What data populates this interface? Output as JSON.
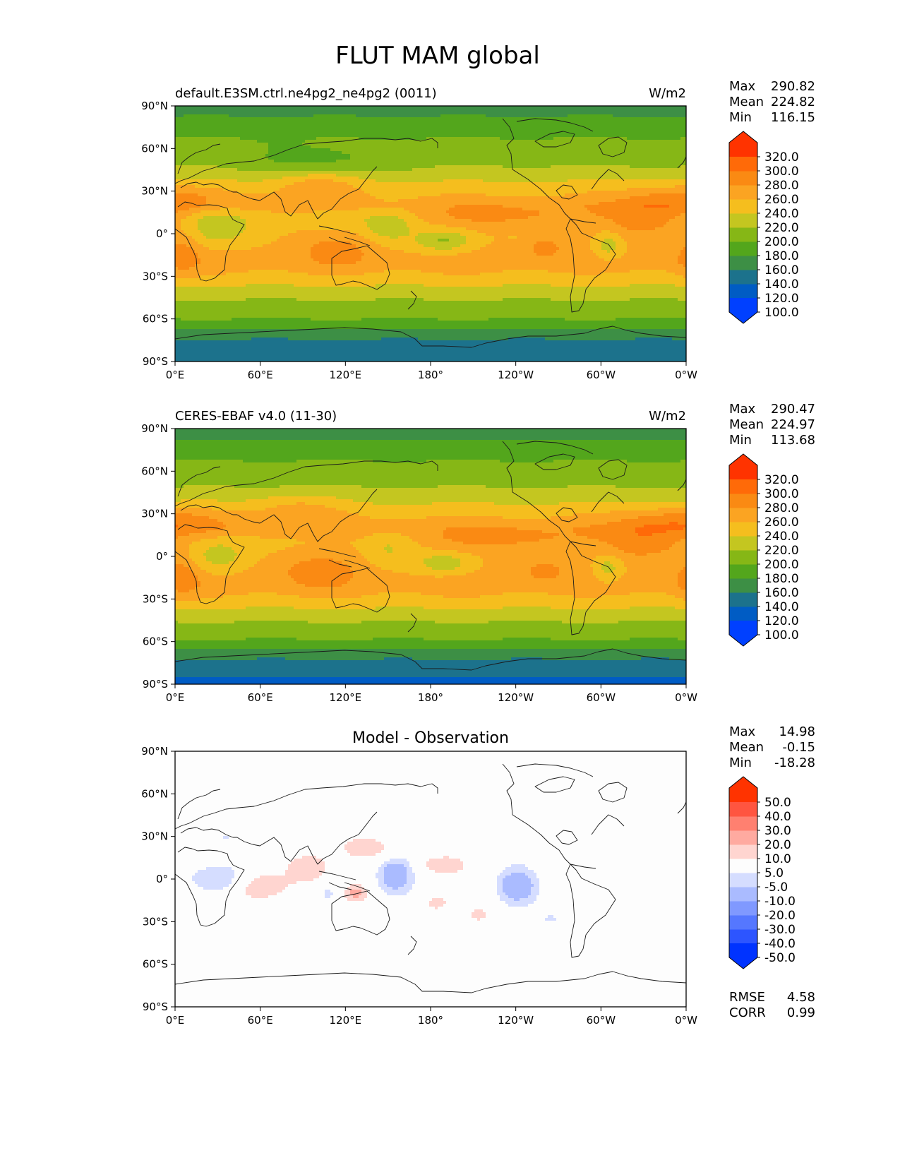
{
  "figure": {
    "title": "FLUT MAM global"
  },
  "chart_data": [
    {
      "type": "heatmap",
      "subtitle_left": "default.E3SM.ctrl.ne4pg2_ne4pg2 (0011)",
      "subtitle_right": "W/m2",
      "x_ticks": [
        "0°E",
        "60°E",
        "120°E",
        "180°",
        "120°W",
        "60°W",
        "0°W"
      ],
      "y_ticks": [
        "90°N",
        "60°N",
        "30°N",
        "0°",
        "30°S",
        "60°S",
        "90°S"
      ],
      "xlim": [
        0,
        360
      ],
      "ylim": [
        -90,
        90
      ],
      "stats": {
        "Max": "290.82",
        "Mean": "224.82",
        "Min": "116.15"
      },
      "colorbar": {
        "labels": [
          "320.0",
          "300.0",
          "280.0",
          "260.0",
          "240.0",
          "220.0",
          "200.0",
          "180.0",
          "160.0",
          "140.0",
          "120.0",
          "100.0"
        ],
        "levels": [
          100,
          120,
          140,
          160,
          180,
          200,
          220,
          240,
          260,
          280,
          300,
          320
        ],
        "colors": [
          "#0040ff",
          "#005cc4",
          "#1c728c",
          "#3d8f45",
          "#53a61c",
          "#86b716",
          "#c4c620",
          "#f5be1e",
          "#fba422",
          "#fa8a13",
          "#ff6a08",
          "#ff3300"
        ],
        "extend": "both"
      },
      "field": {
        "base_by_lat": [
          [
            90,
            148
          ],
          [
            80,
            165
          ],
          [
            70,
            178
          ],
          [
            60,
            186
          ],
          [
            50,
            196
          ],
          [
            40,
            213
          ],
          [
            30,
            234
          ],
          [
            20,
            250
          ],
          [
            10,
            236
          ],
          [
            0,
            240
          ],
          [
            -10,
            244
          ],
          [
            -20,
            250
          ],
          [
            -30,
            236
          ],
          [
            -40,
            212
          ],
          [
            -50,
            194
          ],
          [
            -60,
            180
          ],
          [
            -67,
            160
          ],
          [
            -75,
            138
          ],
          [
            -90,
            120
          ]
        ],
        "anomalies": [
          {
            "lon": 30,
            "lat": 5,
            "amp": -40,
            "rlon": 22,
            "rlat": 13
          },
          {
            "lon": 355,
            "lat": 25,
            "amp": 28,
            "rlon": 40,
            "rlat": 10
          },
          {
            "lon": 5,
            "lat": -15,
            "amp": 28,
            "rlon": 12,
            "rlat": 13
          },
          {
            "lon": 115,
            "lat": -10,
            "amp": 22,
            "rlon": 30,
            "rlat": 12
          },
          {
            "lon": 115,
            "lat": 10,
            "amp": -12,
            "rlon": 25,
            "rlat": 12
          },
          {
            "lon": 150,
            "lat": 5,
            "amp": -30,
            "rlon": 18,
            "rlat": 12
          },
          {
            "lon": 230,
            "lat": 12,
            "amp": 28,
            "rlon": 55,
            "rlat": 8
          },
          {
            "lon": 260,
            "lat": -10,
            "amp": 30,
            "rlon": 12,
            "rlat": 7
          },
          {
            "lon": 190,
            "lat": -5,
            "amp": -45,
            "rlon": 20,
            "rlat": 8
          },
          {
            "lon": 305,
            "lat": -8,
            "amp": -35,
            "rlon": 10,
            "rlat": 10
          },
          {
            "lon": 330,
            "lat": 10,
            "amp": 35,
            "rlon": 30,
            "rlat": 12
          },
          {
            "lon": 100,
            "lat": 35,
            "amp": 28,
            "rlon": 30,
            "rlat": 10
          },
          {
            "lon": 100,
            "lat": 50,
            "amp": -20,
            "rlon": 50,
            "rlat": 10
          }
        ]
      }
    },
    {
      "type": "heatmap",
      "subtitle_left": "CERES-EBAF v4.0 (11-30)",
      "subtitle_right": "W/m2",
      "x_ticks": [
        "0°E",
        "60°E",
        "120°E",
        "180°",
        "120°W",
        "60°W",
        "0°W"
      ],
      "y_ticks": [
        "90°N",
        "60°N",
        "30°N",
        "0°",
        "30°S",
        "60°S",
        "90°S"
      ],
      "xlim": [
        0,
        360
      ],
      "ylim": [
        -90,
        90
      ],
      "stats": {
        "Max": "290.47",
        "Mean": "224.97",
        "Min": "113.68"
      },
      "colorbar": {
        "labels": [
          "320.0",
          "300.0",
          "280.0",
          "260.0",
          "240.0",
          "220.0",
          "200.0",
          "180.0",
          "160.0",
          "140.0",
          "120.0",
          "100.0"
        ],
        "levels": [
          100,
          120,
          140,
          160,
          180,
          200,
          220,
          240,
          260,
          280,
          300,
          320
        ],
        "colors": [
          "#0040ff",
          "#005cc4",
          "#1c728c",
          "#3d8f45",
          "#53a61c",
          "#86b716",
          "#c4c620",
          "#f5be1e",
          "#fba422",
          "#fa8a13",
          "#ff6a08",
          "#ff3300"
        ],
        "extend": "both"
      },
      "field": {
        "base_by_lat": [
          [
            90,
            146
          ],
          [
            80,
            164
          ],
          [
            70,
            178
          ],
          [
            60,
            186
          ],
          [
            50,
            198
          ],
          [
            40,
            214
          ],
          [
            30,
            236
          ],
          [
            20,
            252
          ],
          [
            10,
            238
          ],
          [
            0,
            242
          ],
          [
            -10,
            246
          ],
          [
            -20,
            250
          ],
          [
            -30,
            236
          ],
          [
            -40,
            212
          ],
          [
            -50,
            192
          ],
          [
            -60,
            178
          ],
          [
            -67,
            156
          ],
          [
            -75,
            132
          ],
          [
            -90,
            115
          ]
        ],
        "anomalies": [
          {
            "lon": 30,
            "lat": 0,
            "amp": -34,
            "rlon": 20,
            "rlat": 12
          },
          {
            "lon": 355,
            "lat": 25,
            "amp": 30,
            "rlon": 40,
            "rlat": 10
          },
          {
            "lon": 5,
            "lat": -15,
            "amp": 30,
            "rlon": 12,
            "rlat": 13
          },
          {
            "lon": 100,
            "lat": -10,
            "amp": 24,
            "rlon": 30,
            "rlat": 12
          },
          {
            "lon": 150,
            "lat": 5,
            "amp": -20,
            "rlon": 18,
            "rlat": 12
          },
          {
            "lon": 230,
            "lat": 12,
            "amp": 28,
            "rlon": 55,
            "rlat": 8
          },
          {
            "lon": 260,
            "lat": -10,
            "amp": 30,
            "rlon": 12,
            "rlat": 7
          },
          {
            "lon": 190,
            "lat": -5,
            "amp": -38,
            "rlon": 20,
            "rlat": 8
          },
          {
            "lon": 305,
            "lat": -8,
            "amp": -35,
            "rlon": 10,
            "rlat": 10
          },
          {
            "lon": 330,
            "lat": 10,
            "amp": 35,
            "rlon": 30,
            "rlat": 12
          },
          {
            "lon": 85,
            "lat": 35,
            "amp": 22,
            "rlon": 30,
            "rlat": 10
          }
        ]
      }
    },
    {
      "type": "heatmap",
      "title": "Model - Observation",
      "x_ticks": [
        "0°E",
        "60°E",
        "120°E",
        "180°",
        "120°W",
        "60°W",
        "0°W"
      ],
      "y_ticks": [
        "90°N",
        "60°N",
        "30°N",
        "0°",
        "30°S",
        "60°S",
        "90°S"
      ],
      "xlim": [
        0,
        360
      ],
      "ylim": [
        -90,
        90
      ],
      "stats": {
        "Max": "14.98",
        "Mean": "-0.15",
        "Min": "-18.28"
      },
      "metrics": {
        "RMSE": "4.58",
        "CORR": "0.99"
      },
      "colorbar": {
        "labels": [
          "50.0",
          "40.0",
          "30.0",
          "20.0",
          "10.0",
          "5.0",
          "-5.0",
          "-10.0",
          "-20.0",
          "-30.0",
          "-40.0",
          "-50.0"
        ],
        "levels": [
          -50,
          -40,
          -30,
          -20,
          -10,
          -5,
          5,
          10,
          20,
          30,
          40,
          50
        ],
        "colors": [
          "#0033ff",
          "#2d55ff",
          "#5577ff",
          "#8099ff",
          "#aabbff",
          "#d5ddff",
          "#fdfdfd",
          "#ffd5d0",
          "#ffaaa0",
          "#ff8070",
          "#ff5540",
          "#ff3300"
        ],
        "extend": "both"
      },
      "field": {
        "base_by_lat": [
          [
            90,
            0
          ],
          [
            -90,
            0
          ]
        ],
        "anomalies": [
          {
            "lon": 60,
            "lat": -5,
            "amp": 13,
            "rlon": 22,
            "rlat": 12
          },
          {
            "lon": 90,
            "lat": 8,
            "amp": 9,
            "rlon": 14,
            "rlat": 10
          },
          {
            "lon": 128,
            "lat": -10,
            "amp": 11,
            "rlon": 8,
            "rlat": 6
          },
          {
            "lon": 140,
            "lat": 22,
            "amp": 9,
            "rlon": 18,
            "rlat": 9
          },
          {
            "lon": 30,
            "lat": 0,
            "amp": -14,
            "rlon": 22,
            "rlat": 12
          },
          {
            "lon": 155,
            "lat": 3,
            "amp": -15,
            "rlon": 11,
            "rlat": 11
          },
          {
            "lon": 108,
            "lat": -10,
            "amp": -9,
            "rlon": 8,
            "rlat": 8
          },
          {
            "lon": 240,
            "lat": -5,
            "amp": -16,
            "rlon": 13,
            "rlat": 11
          },
          {
            "lon": 185,
            "lat": 10,
            "amp": 8,
            "rlon": 16,
            "rlat": 6
          },
          {
            "lon": 215,
            "lat": -25,
            "amp": 7,
            "rlon": 6,
            "rlat": 4
          },
          {
            "lon": 183,
            "lat": -17,
            "amp": 7,
            "rlon": 8,
            "rlat": 5
          },
          {
            "lon": 257,
            "lat": 15,
            "amp": 7,
            "rlon": 6,
            "rlat": 8
          },
          {
            "lon": 335,
            "lat": -10,
            "amp": 6,
            "rlon": 4,
            "rlat": 4
          },
          {
            "lon": 35,
            "lat": 30,
            "amp": -7,
            "rlon": 8,
            "rlat": 4
          },
          {
            "lon": 265,
            "lat": -28,
            "amp": -6,
            "rlon": 6,
            "rlat": 3
          }
        ]
      }
    }
  ]
}
